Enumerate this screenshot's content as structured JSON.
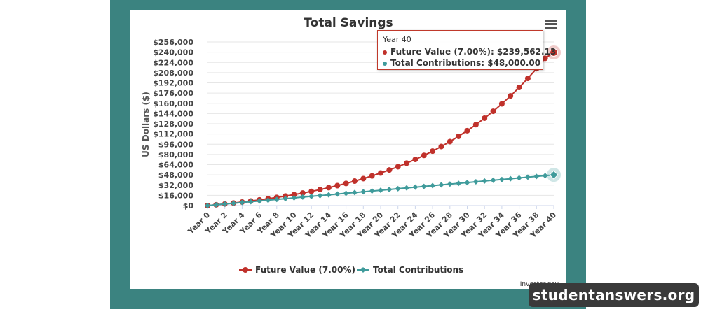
{
  "chart_data": {
    "type": "line",
    "title": "Total Savings",
    "ylabel": "US Dollars ($)",
    "xlabel": "",
    "ylim": [
      0,
      256000
    ],
    "y_ticks": [
      "$0",
      "$16,000",
      "$32,000",
      "$48,000",
      "$64,000",
      "$80,000",
      "$96,000",
      "$112,000",
      "$128,000",
      "$144,000",
      "$160,000",
      "$176,000",
      "$192,000",
      "$208,000",
      "$224,000",
      "$240,000",
      "$256,000"
    ],
    "x_ticks": [
      "Year 0",
      "Year 2",
      "Year 4",
      "Year 6",
      "Year 8",
      "Year 10",
      "Year 12",
      "Year 14",
      "Year 16",
      "Year 18",
      "Year 20",
      "Year 22",
      "Year 24",
      "Year 26",
      "Year 28",
      "Year 30",
      "Year 32",
      "Year 34",
      "Year 36",
      "Year 38",
      "Year 40"
    ],
    "x": [
      0,
      1,
      2,
      3,
      4,
      5,
      6,
      7,
      8,
      9,
      10,
      11,
      12,
      13,
      14,
      15,
      16,
      17,
      18,
      19,
      20,
      21,
      22,
      23,
      24,
      25,
      26,
      27,
      28,
      29,
      30,
      31,
      32,
      33,
      34,
      35,
      36,
      37,
      38,
      39,
      40
    ],
    "series": [
      {
        "name": "Future Value (7.00%)",
        "color": "#c0312b",
        "marker": "circle",
        "values": [
          0,
          1240,
          2570,
          3990,
          5510,
          7140,
          8880,
          10740,
          12730,
          14860,
          17140,
          19580,
          22190,
          24980,
          27970,
          31170,
          34590,
          38250,
          42170,
          46360,
          50840,
          55640,
          60770,
          66270,
          72150,
          78450,
          85190,
          92400,
          100110,
          108370,
          117200,
          126650,
          136770,
          147590,
          159170,
          171560,
          184820,
          199000,
          214180,
          230430,
          239562.13
        ]
      },
      {
        "name": "Total Contributions",
        "color": "#3f9b9b",
        "marker": "diamond",
        "values": [
          0,
          1200,
          2400,
          3600,
          4800,
          6000,
          7200,
          8400,
          9600,
          10800,
          12000,
          13200,
          14400,
          15600,
          16800,
          18000,
          19200,
          20400,
          21600,
          22800,
          24000,
          25200,
          26400,
          27600,
          28800,
          30000,
          31200,
          32400,
          33600,
          34800,
          36000,
          37200,
          38400,
          39600,
          40800,
          42000,
          43200,
          44400,
          45600,
          46800,
          48000
        ]
      }
    ],
    "legend_position": "bottom",
    "grid": true
  },
  "tooltip": {
    "title": "Year 40",
    "row1": "Future Value (7.00%): $239,562.13",
    "row2": "Total Contributions: $48,000.00"
  },
  "credit": "Investor.gov",
  "watermark": "studentanswers.org",
  "menu_icon": "hamburger-menu-icon"
}
